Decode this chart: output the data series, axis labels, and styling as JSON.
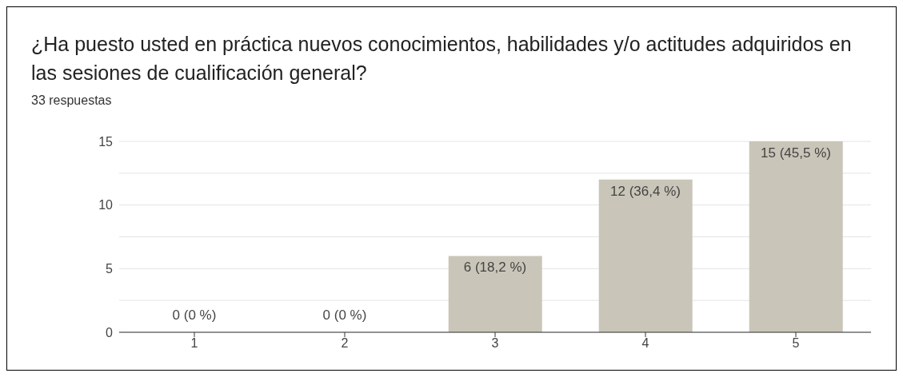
{
  "chart_data": {
    "type": "bar",
    "title": "¿Ha puesto usted en práctica nuevos conocimientos, habilidades y/o actitudes adquiridos en las sesiones de cualificación general?",
    "subtitle": "33 respuestas",
    "categories": [
      "1",
      "2",
      "3",
      "4",
      "5"
    ],
    "values": [
      0,
      0,
      6,
      12,
      15
    ],
    "value_labels": [
      "0 (0 %)",
      "0 (0 %)",
      "6 (18,2 %)",
      "12 (36,4 %)",
      "15 (45,5 %)"
    ],
    "color": "#c9c5b8",
    "ylim": [
      0,
      15
    ],
    "yticks": [
      0,
      {
        "value": 2.5,
        "label": null
      },
      5,
      {
        "value": 7.5,
        "label": null
      },
      10,
      {
        "value": 12.5,
        "label": null
      },
      15
    ],
    "grid": "y",
    "legend": false
  }
}
